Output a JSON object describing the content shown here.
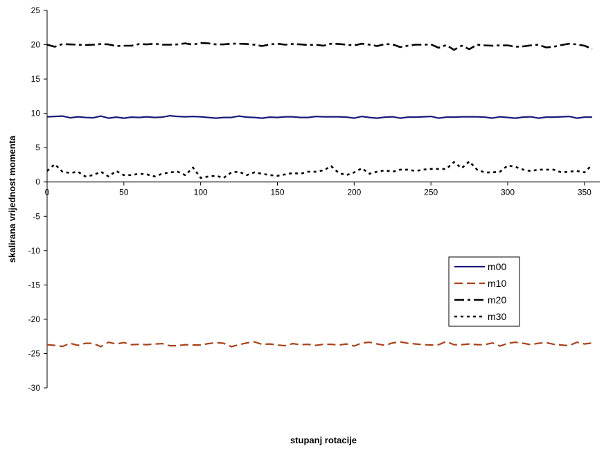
{
  "chart_data": {
    "type": "line",
    "title": "",
    "xlabel": "stupanj rotacije",
    "ylabel": "skalirana vrijednost momenta",
    "xlim": [
      0,
      360
    ],
    "ylim": [
      -30,
      25
    ],
    "xticks": [
      0,
      50,
      100,
      150,
      200,
      250,
      300,
      350
    ],
    "yticks": [
      25,
      20,
      15,
      10,
      5,
      0,
      -5,
      -10,
      -15,
      -20,
      -25,
      -30
    ],
    "grid": false,
    "legend_position": "right",
    "x": [
      0,
      5,
      10,
      15,
      20,
      25,
      30,
      35,
      40,
      45,
      50,
      55,
      60,
      65,
      70,
      75,
      80,
      85,
      90,
      95,
      100,
      105,
      110,
      115,
      120,
      125,
      130,
      135,
      140,
      145,
      150,
      155,
      160,
      165,
      170,
      175,
      180,
      185,
      190,
      195,
      200,
      205,
      210,
      215,
      220,
      225,
      230,
      235,
      240,
      245,
      250,
      255,
      260,
      265,
      270,
      275,
      280,
      285,
      290,
      295,
      300,
      305,
      310,
      315,
      320,
      325,
      330,
      335,
      340,
      345,
      350,
      355
    ],
    "series": [
      {
        "name": "m00",
        "color": "#1a1a7a",
        "style": "solid",
        "values": [
          9.5,
          9.55,
          9.6,
          9.35,
          9.5,
          9.4,
          9.35,
          9.6,
          9.3,
          9.45,
          9.3,
          9.45,
          9.4,
          9.5,
          9.4,
          9.45,
          9.65,
          9.55,
          9.5,
          9.55,
          9.5,
          9.4,
          9.3,
          9.4,
          9.4,
          9.6,
          9.45,
          9.4,
          9.3,
          9.45,
          9.4,
          9.5,
          9.5,
          9.4,
          9.4,
          9.55,
          9.5,
          9.5,
          9.5,
          9.45,
          9.3,
          9.55,
          9.4,
          9.3,
          9.45,
          9.5,
          9.3,
          9.45,
          9.45,
          9.5,
          9.55,
          9.3,
          9.45,
          9.45,
          9.5,
          9.5,
          9.5,
          9.45,
          9.3,
          9.5,
          9.4,
          9.3,
          9.45,
          9.5,
          9.3,
          9.45,
          9.45,
          9.5,
          9.55,
          9.3,
          9.45,
          9.45
        ]
      },
      {
        "name": "m10",
        "color": "#a8421a",
        "style": "dashed",
        "values": [
          -23.7,
          -23.8,
          -23.95,
          -23.5,
          -23.8,
          -23.5,
          -23.5,
          -24.0,
          -23.35,
          -23.6,
          -23.4,
          -23.7,
          -23.65,
          -23.7,
          -23.6,
          -23.55,
          -23.85,
          -23.85,
          -23.7,
          -23.75,
          -23.75,
          -23.55,
          -23.4,
          -23.5,
          -24.0,
          -23.7,
          -23.45,
          -23.3,
          -23.65,
          -23.6,
          -23.75,
          -23.85,
          -23.55,
          -23.7,
          -23.65,
          -23.8,
          -23.65,
          -23.65,
          -23.75,
          -23.6,
          -23.9,
          -23.45,
          -23.35,
          -23.6,
          -23.8,
          -23.45,
          -23.3,
          -23.5,
          -23.6,
          -23.7,
          -23.75,
          -23.7,
          -23.25,
          -23.7,
          -23.7,
          -23.6,
          -23.7,
          -23.7,
          -23.45,
          -23.9,
          -23.5,
          -23.35,
          -23.5,
          -23.7,
          -23.5,
          -23.4,
          -23.65,
          -23.75,
          -23.85,
          -23.35,
          -23.6,
          -23.45
        ]
      },
      {
        "name": "m20",
        "color": "#000000",
        "style": "dashdot",
        "values": [
          20.0,
          19.7,
          20.1,
          20.05,
          20.0,
          19.95,
          20.0,
          20.1,
          20.05,
          19.8,
          19.85,
          19.85,
          20.1,
          20.05,
          20.15,
          20.0,
          20.0,
          20.05,
          20.2,
          20.0,
          20.25,
          20.2,
          20.05,
          20.05,
          20.15,
          20.15,
          20.1,
          20.0,
          19.8,
          20.05,
          20.15,
          20.0,
          20.1,
          20.05,
          19.95,
          20.0,
          19.85,
          20.15,
          20.1,
          20.0,
          19.9,
          20.15,
          20.0,
          19.8,
          20.1,
          20.05,
          19.65,
          19.85,
          20.0,
          20.0,
          20.05,
          19.55,
          19.95,
          19.25,
          19.85,
          19.35,
          20.0,
          19.9,
          19.85,
          19.9,
          19.9,
          19.7,
          19.75,
          19.9,
          20.0,
          19.6,
          19.7,
          19.95,
          20.15,
          20.05,
          19.85,
          19.4
        ]
      },
      {
        "name": "m30",
        "color": "#000000",
        "style": "dotted",
        "values": [
          1.6,
          2.6,
          1.5,
          1.3,
          1.5,
          0.8,
          1.0,
          1.5,
          0.8,
          1.6,
          1.0,
          1.0,
          1.2,
          1.1,
          0.8,
          1.2,
          1.4,
          1.5,
          1.0,
          2.1,
          0.6,
          0.8,
          0.9,
          0.6,
          1.4,
          1.5,
          1.0,
          1.4,
          1.2,
          1.0,
          0.9,
          1.1,
          1.3,
          1.2,
          1.5,
          1.5,
          1.7,
          2.3,
          1.3,
          1.0,
          1.4,
          2.0,
          1.2,
          1.5,
          1.7,
          1.5,
          1.8,
          1.8,
          1.6,
          1.8,
          1.9,
          1.9,
          1.9,
          2.9,
          2.0,
          3.0,
          1.8,
          1.4,
          1.4,
          1.5,
          2.4,
          2.2,
          1.8,
          1.6,
          1.8,
          1.8,
          1.8,
          1.4,
          1.5,
          1.6,
          1.4,
          2.5
        ]
      }
    ]
  }
}
